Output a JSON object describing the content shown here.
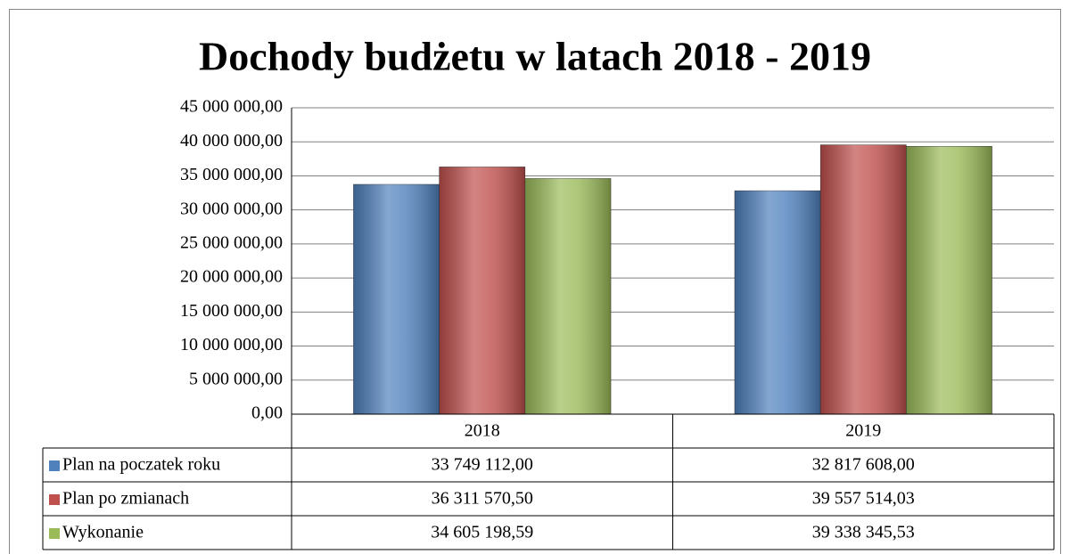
{
  "chart_data": {
    "type": "bar",
    "title": "Dochody budżetu w latach 2018 - 2019",
    "categories": [
      "2018",
      "2019"
    ],
    "series": [
      {
        "name": "Plan na poczatek roku",
        "color": "#4f81bd",
        "values": [
          33749112.0,
          32817608.0
        ],
        "value_labels": [
          "33 749 112,00",
          "32 817 608,00"
        ]
      },
      {
        "name": "Plan po zmianach",
        "color": "#c0504d",
        "values": [
          36311570.5,
          39557514.03
        ],
        "value_labels": [
          "36 311 570,50",
          "39 557 514,03"
        ]
      },
      {
        "name": "Wykonanie",
        "color": "#9bbb59",
        "values": [
          34605198.59,
          39338345.53
        ],
        "value_labels": [
          "34 605 198,59",
          "39 338 345,53"
        ]
      }
    ],
    "ylim": [
      0,
      45000000
    ],
    "yticks": [
      {
        "value": 0,
        "label": "0,00"
      },
      {
        "value": 5000000,
        "label": "5 000 000,00"
      },
      {
        "value": 10000000,
        "label": "10 000 000,00"
      },
      {
        "value": 15000000,
        "label": "15 000 000,00"
      },
      {
        "value": 20000000,
        "label": "20 000 000,00"
      },
      {
        "value": 25000000,
        "label": "25 000 000,00"
      },
      {
        "value": 30000000,
        "label": "30 000 000,00"
      },
      {
        "value": 35000000,
        "label": "35 000 000,00"
      },
      {
        "value": 40000000,
        "label": "40 000 000,00"
      },
      {
        "value": 45000000,
        "label": "45 000 000,00"
      }
    ],
    "grid": true
  }
}
